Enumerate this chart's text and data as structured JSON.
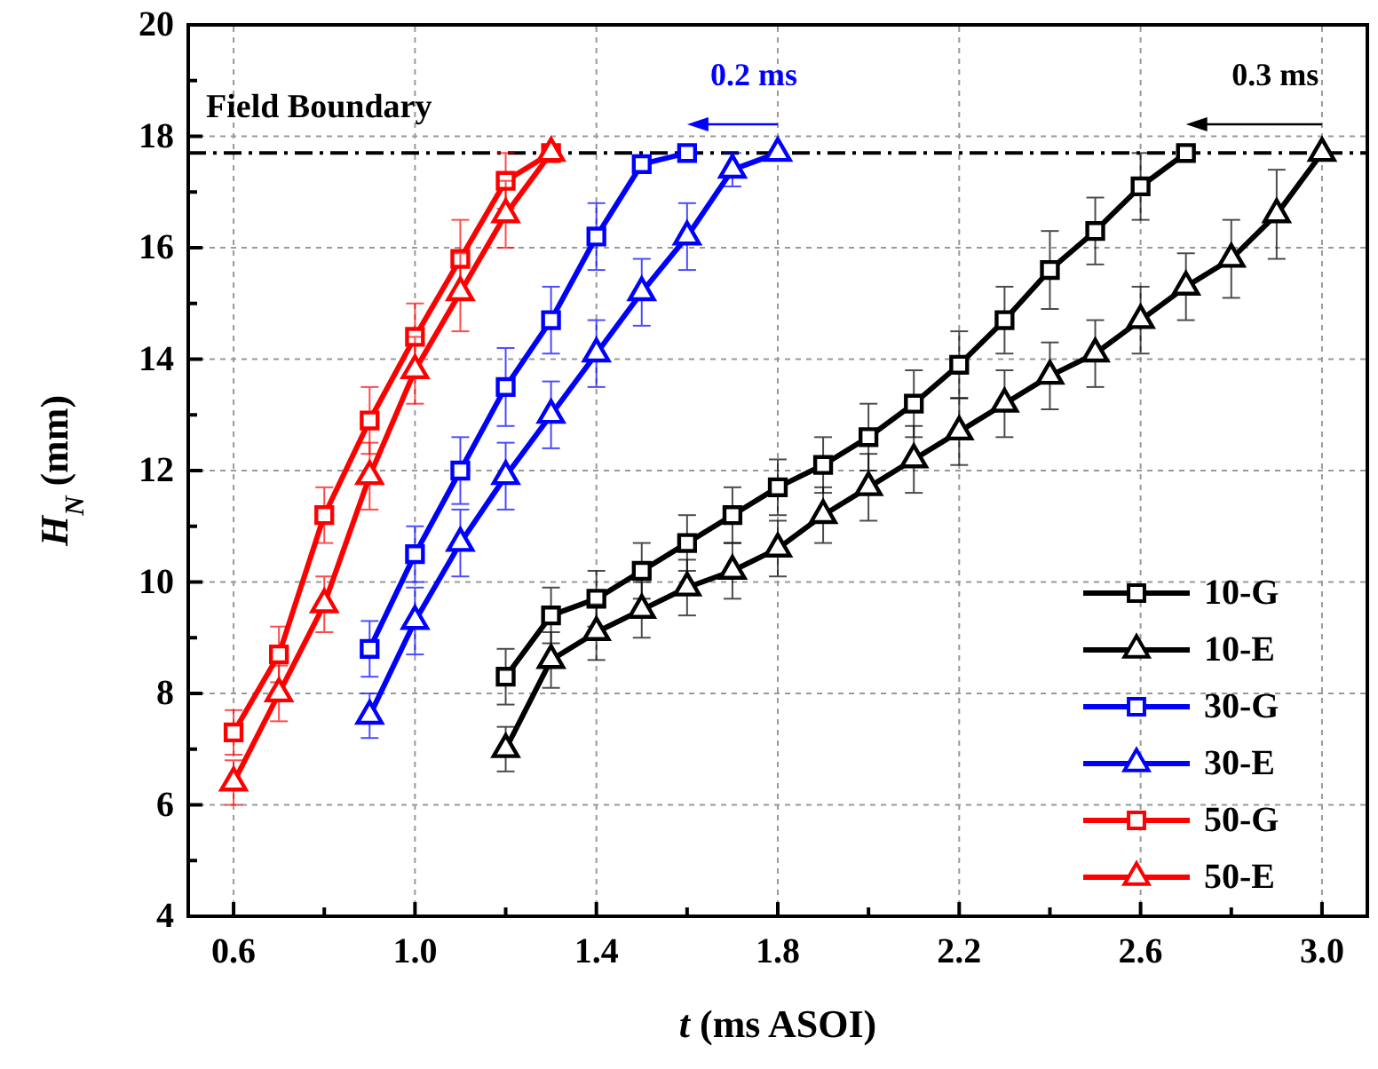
{
  "chart_data": {
    "type": "line",
    "xlabel": "t (ms ASOI)",
    "ylabel": "H$_{N}$ (mm)",
    "xlim": [
      0.5,
      3.1
    ],
    "ylim": [
      4,
      20
    ],
    "xticks": [
      0.6,
      {
        "value": 0.8,
        "label": null
      },
      "1.0",
      {
        "value": 1.2,
        "label": null
      },
      1.4,
      {
        "value": 1.6,
        "label": null
      },
      1.8,
      {
        "value": 2.0,
        "label": null
      },
      2.2,
      {
        "value": 2.4,
        "label": null
      },
      2.6,
      {
        "value": 2.8,
        "label": null
      },
      "3.0"
    ],
    "yticks": [
      4,
      {
        "value": 5,
        "label": null
      },
      6,
      {
        "value": 7,
        "label": null
      },
      8,
      {
        "value": 9,
        "label": null
      },
      10,
      {
        "value": 11,
        "label": null
      },
      12,
      {
        "value": 13,
        "label": null
      },
      14,
      {
        "value": 15,
        "label": null
      },
      16,
      {
        "value": 17,
        "label": null
      },
      18,
      {
        "value": 19,
        "label": null
      },
      20
    ],
    "grid": true,
    "legend": "bottom right",
    "line_style": "solid",
    "ref_lines": [
      {
        "axis": "y",
        "value": 17.7,
        "label": "Field Boundary",
        "color": "#000000",
        "line_style": "dashdot"
      }
    ],
    "annotations": [
      "0.2 ms",
      "0.3 ms"
    ],
    "series": [
      {
        "name": "10-G",
        "color": "#000000",
        "marker": "square",
        "x": [
          1.2,
          1.3,
          1.4,
          1.5,
          1.6,
          1.7,
          1.8,
          1.9,
          2.0,
          2.1,
          2.2,
          2.3,
          2.4,
          2.5,
          2.6,
          2.7
        ],
        "values": [
          8.3,
          9.4,
          9.7,
          10.2,
          10.7,
          11.2,
          11.7,
          12.1,
          12.6,
          13.2,
          13.9,
          14.7,
          15.6,
          16.3,
          17.1,
          17.7
        ],
        "errors": [
          0.5,
          0.5,
          0.5,
          0.5,
          0.5,
          0.5,
          0.5,
          0.5,
          0.6,
          0.6,
          0.6,
          0.6,
          0.7,
          0.6,
          0.6,
          null
        ]
      },
      {
        "name": "10-E",
        "color": "#000000",
        "marker": "triangle",
        "x": [
          1.2,
          1.3,
          1.4,
          1.5,
          1.6,
          1.7,
          1.8,
          1.9,
          2.0,
          2.1,
          2.2,
          2.3,
          2.4,
          2.5,
          2.6,
          2.7,
          2.8,
          2.9,
          3.0
        ],
        "values": [
          7.0,
          8.6,
          9.1,
          9.5,
          9.9,
          10.2,
          10.6,
          11.2,
          11.7,
          12.2,
          12.7,
          13.2,
          13.7,
          14.1,
          14.7,
          15.3,
          15.8,
          16.6,
          17.7
        ],
        "errors": [
          0.4,
          0.5,
          0.5,
          0.5,
          0.5,
          0.5,
          0.5,
          0.5,
          0.6,
          0.6,
          0.6,
          0.6,
          0.6,
          0.6,
          0.6,
          0.6,
          0.7,
          0.8,
          null
        ]
      },
      {
        "name": "30-G",
        "color": "#0000ff",
        "marker": "square",
        "x": [
          0.9,
          1.0,
          1.1,
          1.2,
          1.3,
          1.4,
          1.5,
          1.6
        ],
        "values": [
          8.8,
          10.5,
          12.0,
          13.5,
          14.7,
          16.2,
          17.5,
          17.7
        ],
        "errors": [
          0.5,
          0.5,
          0.6,
          0.7,
          0.6,
          0.6,
          null,
          null
        ]
      },
      {
        "name": "30-E",
        "color": "#0000ff",
        "marker": "triangle",
        "x": [
          0.9,
          1.0,
          1.1,
          1.2,
          1.3,
          1.4,
          1.5,
          1.6,
          1.7,
          1.8
        ],
        "values": [
          7.6,
          9.3,
          10.7,
          11.9,
          13.0,
          14.1,
          15.2,
          16.2,
          17.4,
          17.7
        ],
        "errors": [
          0.4,
          0.6,
          0.6,
          0.6,
          0.6,
          0.6,
          0.6,
          0.6,
          0.3,
          null
        ]
      },
      {
        "name": "50-G",
        "color": "#ff0000",
        "marker": "square",
        "x": [
          0.6,
          0.7,
          0.8,
          0.9,
          1.0,
          1.1,
          1.2,
          1.3
        ],
        "values": [
          7.3,
          8.7,
          11.2,
          12.9,
          14.4,
          15.8,
          17.2,
          17.7
        ],
        "errors": [
          0.4,
          0.5,
          0.5,
          0.6,
          0.6,
          0.7,
          0.5,
          null
        ]
      },
      {
        "name": "50-E",
        "color": "#ff0000",
        "marker": "triangle",
        "x": [
          0.6,
          0.7,
          0.8,
          0.9,
          1.0,
          1.1,
          1.2,
          1.3
        ],
        "values": [
          6.4,
          8.0,
          9.6,
          11.9,
          13.8,
          15.2,
          16.6,
          17.7
        ],
        "errors": [
          0.4,
          0.5,
          0.5,
          0.6,
          0.6,
          0.7,
          0.6,
          null
        ]
      }
    ]
  }
}
